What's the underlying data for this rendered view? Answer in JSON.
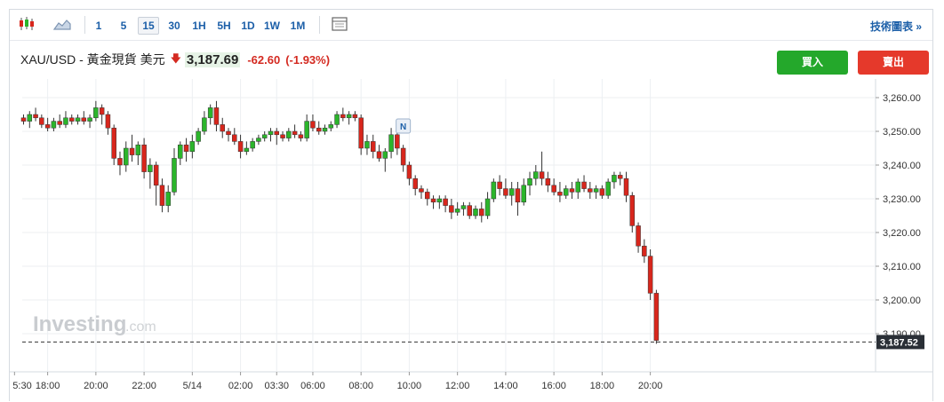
{
  "toolbar": {
    "icons": [
      "candlestick-chart-icon",
      "area-chart-icon",
      "table-icon"
    ],
    "timeframes": [
      "1",
      "5",
      "15",
      "30",
      "1H",
      "5H",
      "1D",
      "1W",
      "1M"
    ],
    "active_timeframe": "15",
    "advanced_chart_label": "技術圖表 »"
  },
  "quote": {
    "symbol": "XAU/USD - 黃金現貨 美元",
    "direction_icon": "down-arrow-icon",
    "price": "3,187.69",
    "change": "-62.60",
    "change_pct": "(-1.93%)"
  },
  "actions": {
    "buy_label": "買入",
    "sell_label": "賣出"
  },
  "watermark": {
    "brand": "Investing",
    "suffix": ".com"
  },
  "colors": {
    "up": "#2bb52b",
    "down": "#d8261c",
    "accent": "#1c5fa8"
  },
  "chart_data": {
    "type": "candlestick",
    "y_ticks": [
      "3,260.00",
      "3,250.00",
      "3,240.00",
      "3,230.00",
      "3,220.00",
      "3,210.00",
      "3,200.00",
      "3,190.00"
    ],
    "ylim": [
      3185,
      3265
    ],
    "y_tick_values": [
      3260,
      3250,
      3240,
      3230,
      3220,
      3210,
      3200,
      3190
    ],
    "x_ticks": [
      "5:30",
      "18:00",
      "20:00",
      "22:00",
      "5/14",
      "02:00",
      "03:30",
      "06:00",
      "08:00",
      "10:00",
      "12:00",
      "14:00",
      "16:00",
      "18:00",
      "20:00"
    ],
    "x_tick_index": [
      -1.5,
      4,
      12,
      20,
      28,
      36,
      42,
      48,
      56,
      64,
      72,
      80,
      88,
      96,
      104
    ],
    "current_price_label": "3,187.52",
    "current_price": 3187.52,
    "news_marker": {
      "label": "N",
      "index": 63
    },
    "grid": true,
    "candles": [
      [
        3254,
        3255,
        3252,
        3253
      ],
      [
        3253,
        3256,
        3251,
        3255
      ],
      [
        3255,
        3257,
        3253,
        3254
      ],
      [
        3254,
        3255,
        3251,
        3252
      ],
      [
        3252,
        3254,
        3250,
        3251
      ],
      [
        3251,
        3254,
        3250,
        3253
      ],
      [
        3253,
        3255,
        3251,
        3252
      ],
      [
        3252,
        3256,
        3251,
        3254
      ],
      [
        3254,
        3255,
        3252,
        3253
      ],
      [
        3253,
        3255,
        3252,
        3254
      ],
      [
        3254,
        3256,
        3252,
        3253
      ],
      [
        3253,
        3255,
        3251,
        3254
      ],
      [
        3254,
        3259,
        3253,
        3257
      ],
      [
        3257,
        3258,
        3252,
        3255
      ],
      [
        3255,
        3256,
        3249,
        3251
      ],
      [
        3251,
        3252,
        3240,
        3242
      ],
      [
        3242,
        3244,
        3237,
        3240
      ],
      [
        3240,
        3247,
        3238,
        3245
      ],
      [
        3245,
        3249,
        3241,
        3243
      ],
      [
        3243,
        3247,
        3240,
        3246
      ],
      [
        3246,
        3248,
        3236,
        3238
      ],
      [
        3238,
        3242,
        3233,
        3240
      ],
      [
        3240,
        3241,
        3228,
        3234
      ],
      [
        3234,
        3236,
        3226,
        3228
      ],
      [
        3228,
        3234,
        3226,
        3232
      ],
      [
        3232,
        3245,
        3231,
        3242
      ],
      [
        3242,
        3247,
        3240,
        3246
      ],
      [
        3246,
        3248,
        3241,
        3244
      ],
      [
        3244,
        3249,
        3242,
        3247
      ],
      [
        3247,
        3251,
        3246,
        3250
      ],
      [
        3250,
        3256,
        3249,
        3254
      ],
      [
        3254,
        3258,
        3252,
        3257
      ],
      [
        3257,
        3259,
        3250,
        3252
      ],
      [
        3252,
        3254,
        3248,
        3250
      ],
      [
        3250,
        3251,
        3247,
        3249
      ],
      [
        3249,
        3251,
        3246,
        3247
      ],
      [
        3247,
        3249,
        3242,
        3244
      ],
      [
        3244,
        3247,
        3243,
        3245
      ],
      [
        3245,
        3248,
        3244,
        3247
      ],
      [
        3247,
        3249,
        3246,
        3248
      ],
      [
        3248,
        3250,
        3247,
        3249
      ],
      [
        3249,
        3251,
        3247,
        3250
      ],
      [
        3250,
        3251,
        3246,
        3249
      ],
      [
        3249,
        3250,
        3247,
        3248
      ],
      [
        3248,
        3251,
        3247,
        3250
      ],
      [
        3250,
        3252,
        3248,
        3249
      ],
      [
        3249,
        3250,
        3247,
        3248
      ],
      [
        3248,
        3255,
        3247,
        3253
      ],
      [
        3253,
        3255,
        3250,
        3251
      ],
      [
        3251,
        3253,
        3249,
        3250
      ],
      [
        3250,
        3252,
        3249,
        3251
      ],
      [
        3251,
        3253,
        3250,
        3252
      ],
      [
        3252,
        3256,
        3251,
        3255
      ],
      [
        3255,
        3257,
        3253,
        3254
      ],
      [
        3254,
        3256,
        3252,
        3255
      ],
      [
        3255,
        3256,
        3253,
        3254
      ],
      [
        3254,
        3255,
        3243,
        3245
      ],
      [
        3245,
        3249,
        3243,
        3247
      ],
      [
        3247,
        3249,
        3242,
        3244
      ],
      [
        3244,
        3246,
        3241,
        3242
      ],
      [
        3242,
        3245,
        3238,
        3244
      ],
      [
        3244,
        3251,
        3242,
        3249
      ],
      [
        3249,
        3251,
        3243,
        3245
      ],
      [
        3245,
        3246,
        3238,
        3240
      ],
      [
        3240,
        3241,
        3234,
        3236
      ],
      [
        3236,
        3237,
        3231,
        3233
      ],
      [
        3233,
        3234,
        3230,
        3232
      ],
      [
        3232,
        3233,
        3228,
        3230
      ],
      [
        3230,
        3231,
        3227,
        3229
      ],
      [
        3229,
        3231,
        3227,
        3230
      ],
      [
        3230,
        3231,
        3226,
        3228
      ],
      [
        3228,
        3230,
        3224,
        3226
      ],
      [
        3226,
        3229,
        3225,
        3227
      ],
      [
        3227,
        3229,
        3225,
        3228
      ],
      [
        3228,
        3229,
        3224,
        3225
      ],
      [
        3225,
        3228,
        3224,
        3227
      ],
      [
        3227,
        3229,
        3223,
        3225
      ],
      [
        3225,
        3232,
        3224,
        3230
      ],
      [
        3230,
        3236,
        3229,
        3235
      ],
      [
        3235,
        3237,
        3231,
        3233
      ],
      [
        3233,
        3236,
        3230,
        3231
      ],
      [
        3231,
        3235,
        3228,
        3233
      ],
      [
        3233,
        3235,
        3225,
        3229
      ],
      [
        3229,
        3236,
        3228,
        3234
      ],
      [
        3234,
        3238,
        3231,
        3236
      ],
      [
        3236,
        3240,
        3234,
        3238
      ],
      [
        3238,
        3244,
        3234,
        3236
      ],
      [
        3236,
        3238,
        3232,
        3234
      ],
      [
        3234,
        3236,
        3231,
        3232
      ],
      [
        3232,
        3235,
        3229,
        3231
      ],
      [
        3231,
        3234,
        3230,
        3233
      ],
      [
        3233,
        3235,
        3230,
        3232
      ],
      [
        3232,
        3236,
        3230,
        3235
      ],
      [
        3235,
        3237,
        3232,
        3233
      ],
      [
        3233,
        3235,
        3230,
        3232
      ],
      [
        3232,
        3234,
        3230,
        3233
      ],
      [
        3233,
        3234,
        3230,
        3231
      ],
      [
        3231,
        3236,
        3230,
        3235
      ],
      [
        3235,
        3238,
        3233,
        3237
      ],
      [
        3237,
        3238,
        3234,
        3236
      ],
      [
        3236,
        3238,
        3229,
        3231
      ],
      [
        3231,
        3232,
        3220,
        3222
      ],
      [
        3222,
        3223,
        3214,
        3216
      ],
      [
        3216,
        3218,
        3211,
        3213
      ],
      [
        3213,
        3215,
        3200,
        3202
      ],
      [
        3202,
        3203,
        3187,
        3188
      ]
    ]
  }
}
